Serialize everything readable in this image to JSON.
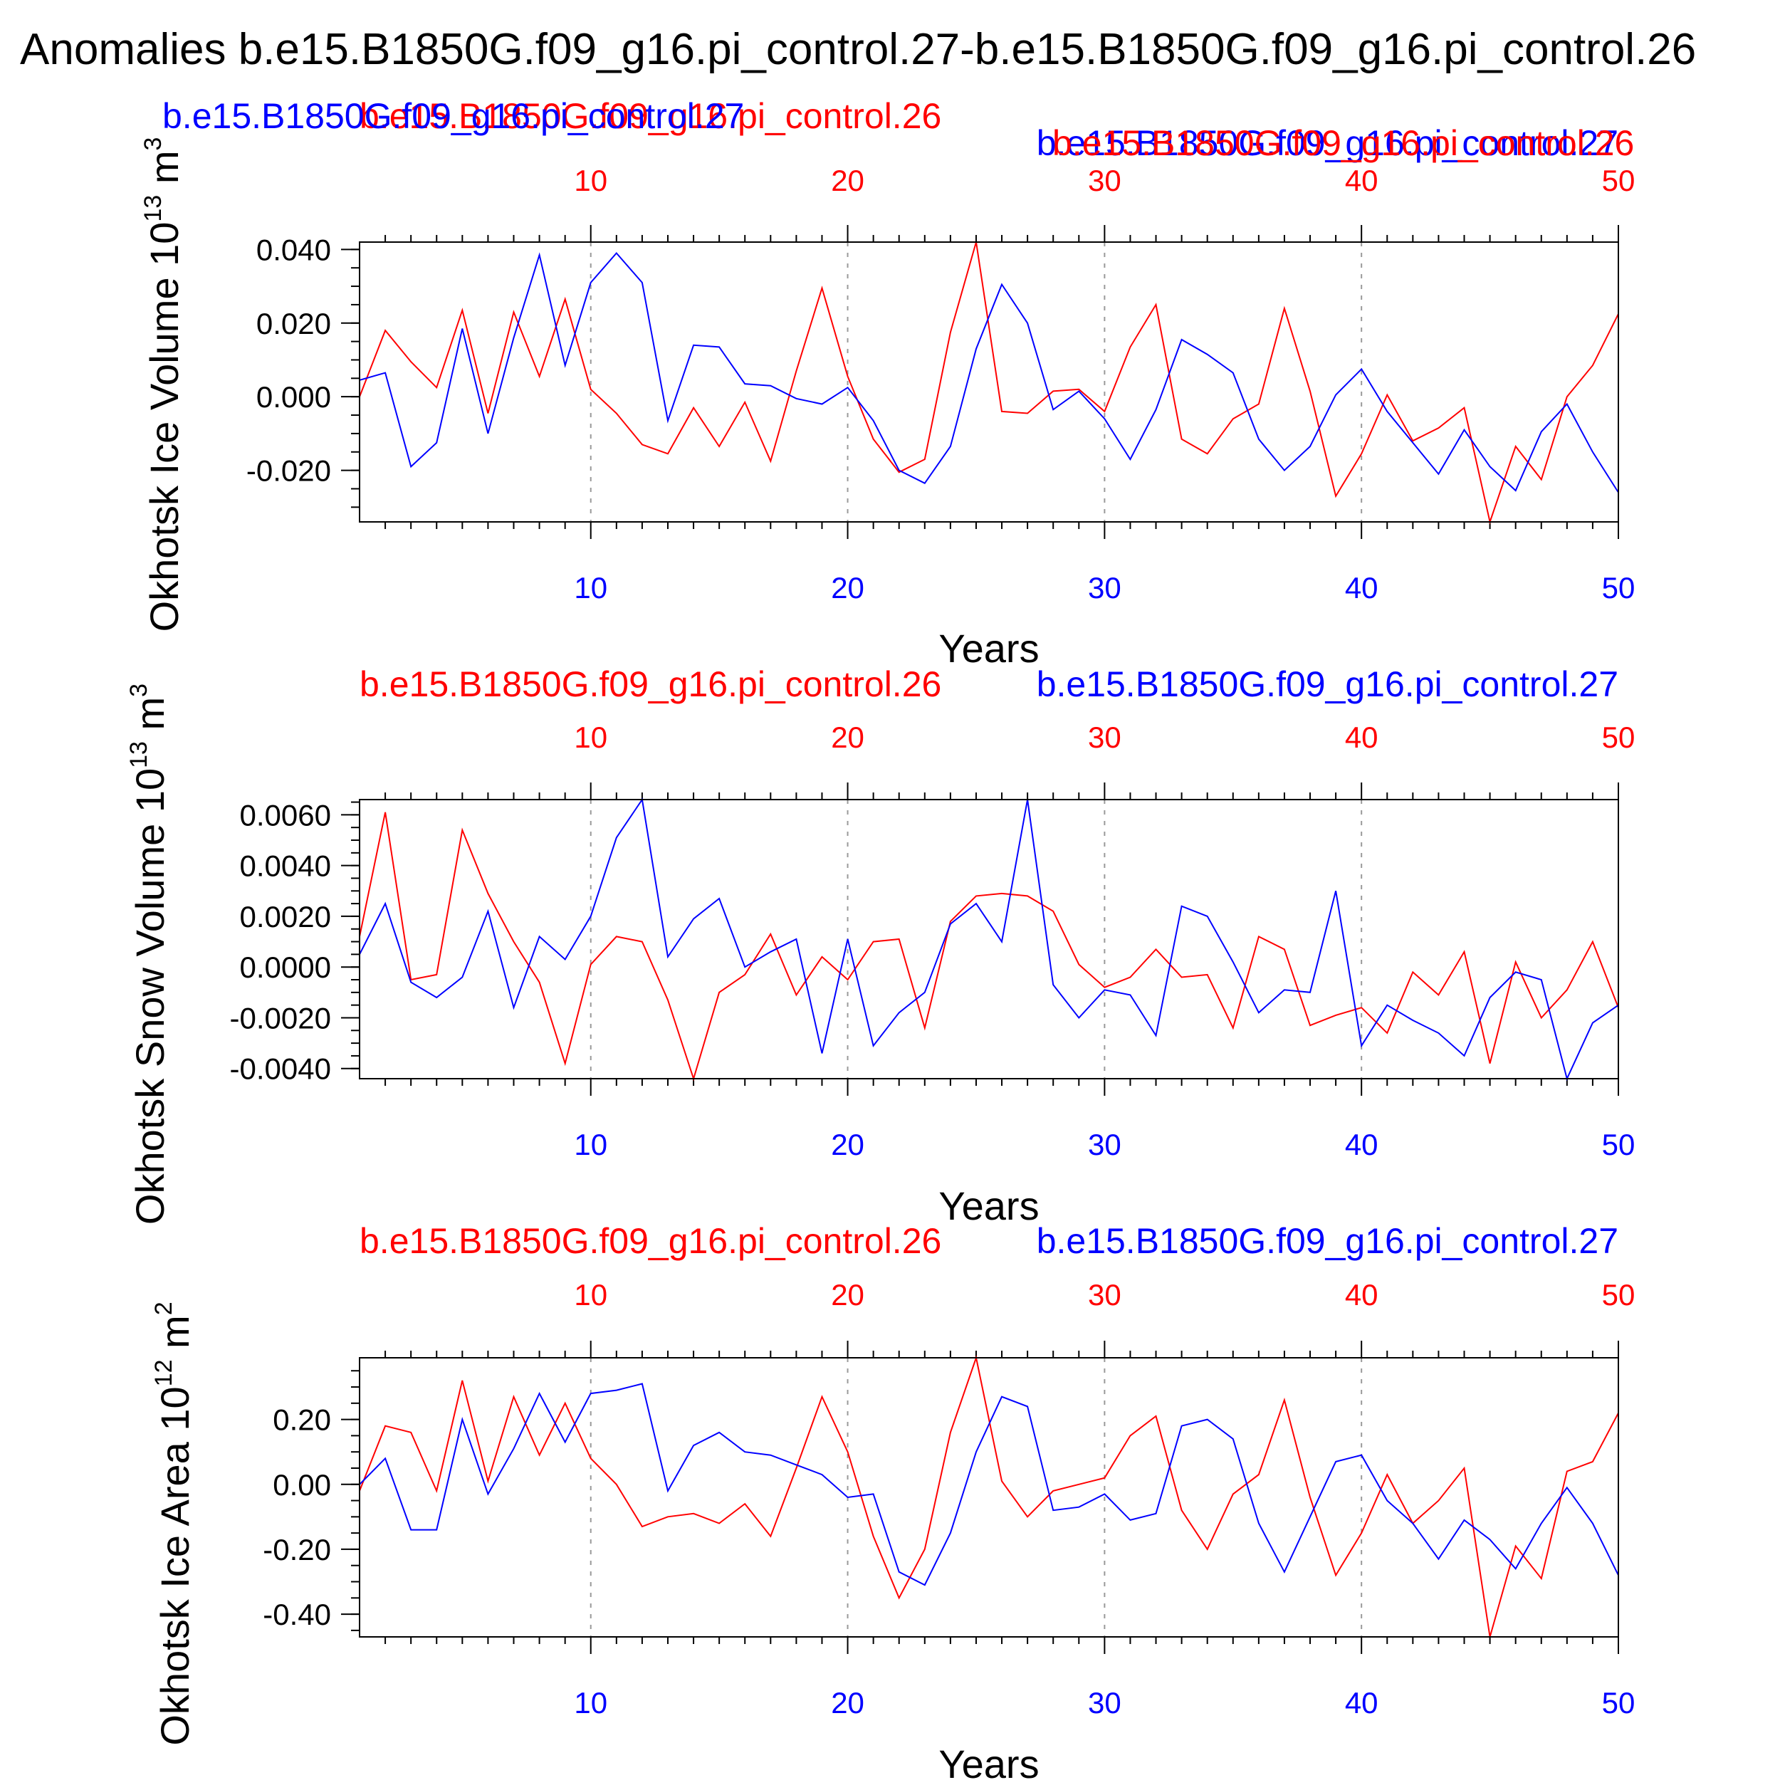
{
  "figure": {
    "title": "Anomalies b.e15.B1850G.f09_g16.pi_control.27-b.e15.B1850G.f09_g16.pi_control.26",
    "colors": {
      "red": "#ff0000",
      "blue": "#0000ff",
      "axis": "#000000",
      "grid": "#9b9b9b"
    }
  },
  "chart_data": [
    {
      "type": "line",
      "name": "ice-volume",
      "ylabel": "Okhotsk Ice Volume 10",
      "ylabel_exp": "13",
      "ylabel_unit": "m",
      "ylabel_unit_exp": "3",
      "xlabel": "Years",
      "xlim": [
        1,
        50
      ],
      "ylim": [
        -0.034,
        0.042
      ],
      "yticks": [
        -0.02,
        0.0,
        0.02,
        0.04
      ],
      "ytick_labels": [
        "-0.020",
        "0.000",
        "0.020",
        "0.040"
      ],
      "xticks": [
        10,
        20,
        30,
        40,
        50
      ],
      "xtick_labels": [
        "10",
        "20",
        "30",
        "40",
        "50"
      ],
      "top_labels": {
        "red": "b.e15.B1850G.f09_g16.pi_control.26",
        "blue": "b.e15.B1850G.f09_g16.pi_control.27",
        "red2": "b.e15.B1850G.f09_g16.pi_control.26",
        "blue2": "b.e15.B1850G.f09_g16.pi_control.27"
      },
      "series": [
        {
          "name": "b.e15.B1850G.f09_g16.pi_control.26",
          "color": "red",
          "values": [
            0.0,
            0.018,
            0.0095,
            0.0025,
            0.0235,
            -0.0045,
            0.023,
            0.0055,
            0.0265,
            0.002,
            -0.0045,
            -0.013,
            -0.0155,
            -0.003,
            -0.0135,
            -0.0015,
            -0.0175,
            0.007,
            0.0295,
            0.0055,
            -0.0115,
            -0.0205,
            -0.017,
            0.0175,
            0.042,
            -0.004,
            -0.0045,
            0.0015,
            0.002,
            -0.004,
            0.0135,
            0.025,
            -0.0115,
            -0.0155,
            -0.006,
            -0.002,
            0.024,
            0.0015,
            -0.027,
            -0.0155,
            0.0005,
            -0.012,
            -0.0085,
            -0.003,
            -0.034,
            -0.0135,
            -0.0225,
            0.0,
            0.0085,
            0.0225
          ]
        },
        {
          "name": "b.e15.B1850G.f09_g16.pi_control.27",
          "color": "blue",
          "values": [
            0.0045,
            0.0065,
            -0.019,
            -0.0125,
            0.0185,
            -0.01,
            0.016,
            0.0385,
            0.0085,
            0.031,
            0.039,
            0.031,
            -0.0065,
            0.014,
            0.0135,
            0.0035,
            0.003,
            -0.0005,
            -0.002,
            0.0025,
            -0.0065,
            -0.02,
            -0.0235,
            -0.0135,
            0.013,
            0.0305,
            0.02,
            -0.0035,
            0.0015,
            -0.006,
            -0.017,
            -0.0035,
            0.0155,
            0.0115,
            0.0065,
            -0.0115,
            -0.02,
            -0.0135,
            0.0005,
            0.0075,
            -0.004,
            -0.0125,
            -0.021,
            -0.009,
            -0.019,
            -0.0255,
            -0.0095,
            -0.002,
            -0.015,
            -0.026
          ]
        }
      ]
    },
    {
      "type": "line",
      "name": "snow-volume",
      "ylabel": "Okhotsk Snow Volume 10",
      "ylabel_exp": "13",
      "ylabel_unit": "m",
      "ylabel_unit_exp": "3",
      "xlabel": "Years",
      "xlim": [
        1,
        50
      ],
      "ylim": [
        -0.0044,
        0.0066
      ],
      "yticks": [
        -0.004,
        -0.002,
        0.0,
        0.002,
        0.004,
        0.006
      ],
      "ytick_labels": [
        "-0.0040",
        "-0.0020",
        "0.0000",
        "0.0020",
        "0.0040",
        "0.0060"
      ],
      "xticks": [
        10,
        20,
        30,
        40,
        50
      ],
      "xtick_labels": [
        "10",
        "20",
        "30",
        "40",
        "50"
      ],
      "top_labels": {
        "red": "b.e15.B1850G.f09_g16.pi_control.26",
        "blue": "b.e15.B1850G.f09_g16.pi_control.27"
      },
      "series": [
        {
          "name": "b.e15.B1850G.f09_g16.pi_control.26",
          "color": "red",
          "values": [
            0.0012,
            0.0061,
            -0.0005,
            -0.0003,
            0.0054,
            0.0029,
            0.001,
            -0.0006,
            -0.0038,
            0.0001,
            0.0012,
            0.001,
            -0.0013,
            -0.0044,
            -0.001,
            -0.0003,
            0.0013,
            -0.0011,
            0.0004,
            -0.0005,
            0.001,
            0.0011,
            -0.0024,
            0.0018,
            0.0028,
            0.0029,
            0.0028,
            0.0022,
            0.0001,
            -0.0008,
            -0.0004,
            0.0007,
            -0.0004,
            -0.0003,
            -0.0024,
            0.0012,
            0.0007,
            -0.0023,
            -0.0019,
            -0.0016,
            -0.0026,
            -0.0002,
            -0.0011,
            0.0006,
            -0.0038,
            0.0002,
            -0.002,
            -0.0009,
            0.001,
            -0.0016
          ]
        },
        {
          "name": "b.e15.B1850G.f09_g16.pi_control.27",
          "color": "blue",
          "values": [
            0.0005,
            0.0025,
            -0.0006,
            -0.0012,
            -0.0004,
            0.0022,
            -0.0016,
            0.0012,
            0.0003,
            0.002,
            0.0051,
            0.0066,
            0.0004,
            0.0019,
            0.0027,
            0.0,
            0.0006,
            0.0011,
            -0.0034,
            0.0011,
            -0.0031,
            -0.0018,
            -0.001,
            0.0017,
            0.0025,
            0.001,
            0.0066,
            -0.0007,
            -0.002,
            -0.0009,
            -0.0011,
            -0.0027,
            0.0024,
            0.002,
            0.0002,
            -0.0018,
            -0.0009,
            -0.001,
            0.003,
            -0.0031,
            -0.0015,
            -0.0021,
            -0.0026,
            -0.0035,
            -0.0012,
            -0.0002,
            -0.0005,
            -0.0044,
            -0.0022,
            -0.0015
          ]
        }
      ]
    },
    {
      "type": "line",
      "name": "ice-area",
      "ylabel": "Okhotsk Ice Area 10",
      "ylabel_exp": "12",
      "ylabel_unit": "m",
      "ylabel_unit_exp": "2",
      "xlabel": "Years",
      "xlim": [
        1,
        50
      ],
      "ylim": [
        -0.47,
        0.39
      ],
      "yticks": [
        -0.4,
        -0.2,
        0.0,
        0.2
      ],
      "ytick_labels": [
        "-0.40",
        "-0.20",
        "0.00",
        "0.20"
      ],
      "xticks": [
        10,
        20,
        30,
        40,
        50
      ],
      "xtick_labels": [
        "10",
        "20",
        "30",
        "40",
        "50"
      ],
      "top_labels": {
        "red": "b.e15.B1850G.f09_g16.pi_control.26",
        "blue": "b.e15.B1850G.f09_g16.pi_control.27"
      },
      "series": [
        {
          "name": "b.e15.B1850G.f09_g16.pi_control.26",
          "color": "red",
          "values": [
            -0.02,
            0.18,
            0.16,
            -0.02,
            0.32,
            0.01,
            0.27,
            0.09,
            0.25,
            0.08,
            0.0,
            -0.13,
            -0.1,
            -0.09,
            -0.12,
            -0.06,
            -0.16,
            0.05,
            0.27,
            0.1,
            -0.16,
            -0.35,
            -0.2,
            0.16,
            0.39,
            0.01,
            -0.1,
            -0.02,
            0.0,
            0.02,
            0.15,
            0.21,
            -0.08,
            -0.2,
            -0.03,
            0.03,
            0.26,
            -0.04,
            -0.28,
            -0.15,
            0.03,
            -0.12,
            -0.05,
            0.05,
            -0.47,
            -0.19,
            -0.29,
            0.04,
            0.07,
            0.22
          ]
        },
        {
          "name": "b.e15.B1850G.f09_g16.pi_control.27",
          "color": "blue",
          "values": [
            0.0,
            0.08,
            -0.14,
            -0.14,
            0.2,
            -0.03,
            0.11,
            0.28,
            0.13,
            0.28,
            0.29,
            0.31,
            -0.02,
            0.12,
            0.16,
            0.1,
            0.09,
            0.06,
            0.03,
            -0.04,
            -0.03,
            -0.27,
            -0.31,
            -0.15,
            0.1,
            0.27,
            0.24,
            -0.08,
            -0.07,
            -0.03,
            -0.11,
            -0.09,
            0.18,
            0.2,
            0.14,
            -0.12,
            -0.27,
            -0.1,
            0.07,
            0.09,
            -0.05,
            -0.12,
            -0.23,
            -0.11,
            -0.17,
            -0.26,
            -0.12,
            -0.01,
            -0.12,
            -0.28
          ]
        }
      ]
    }
  ]
}
